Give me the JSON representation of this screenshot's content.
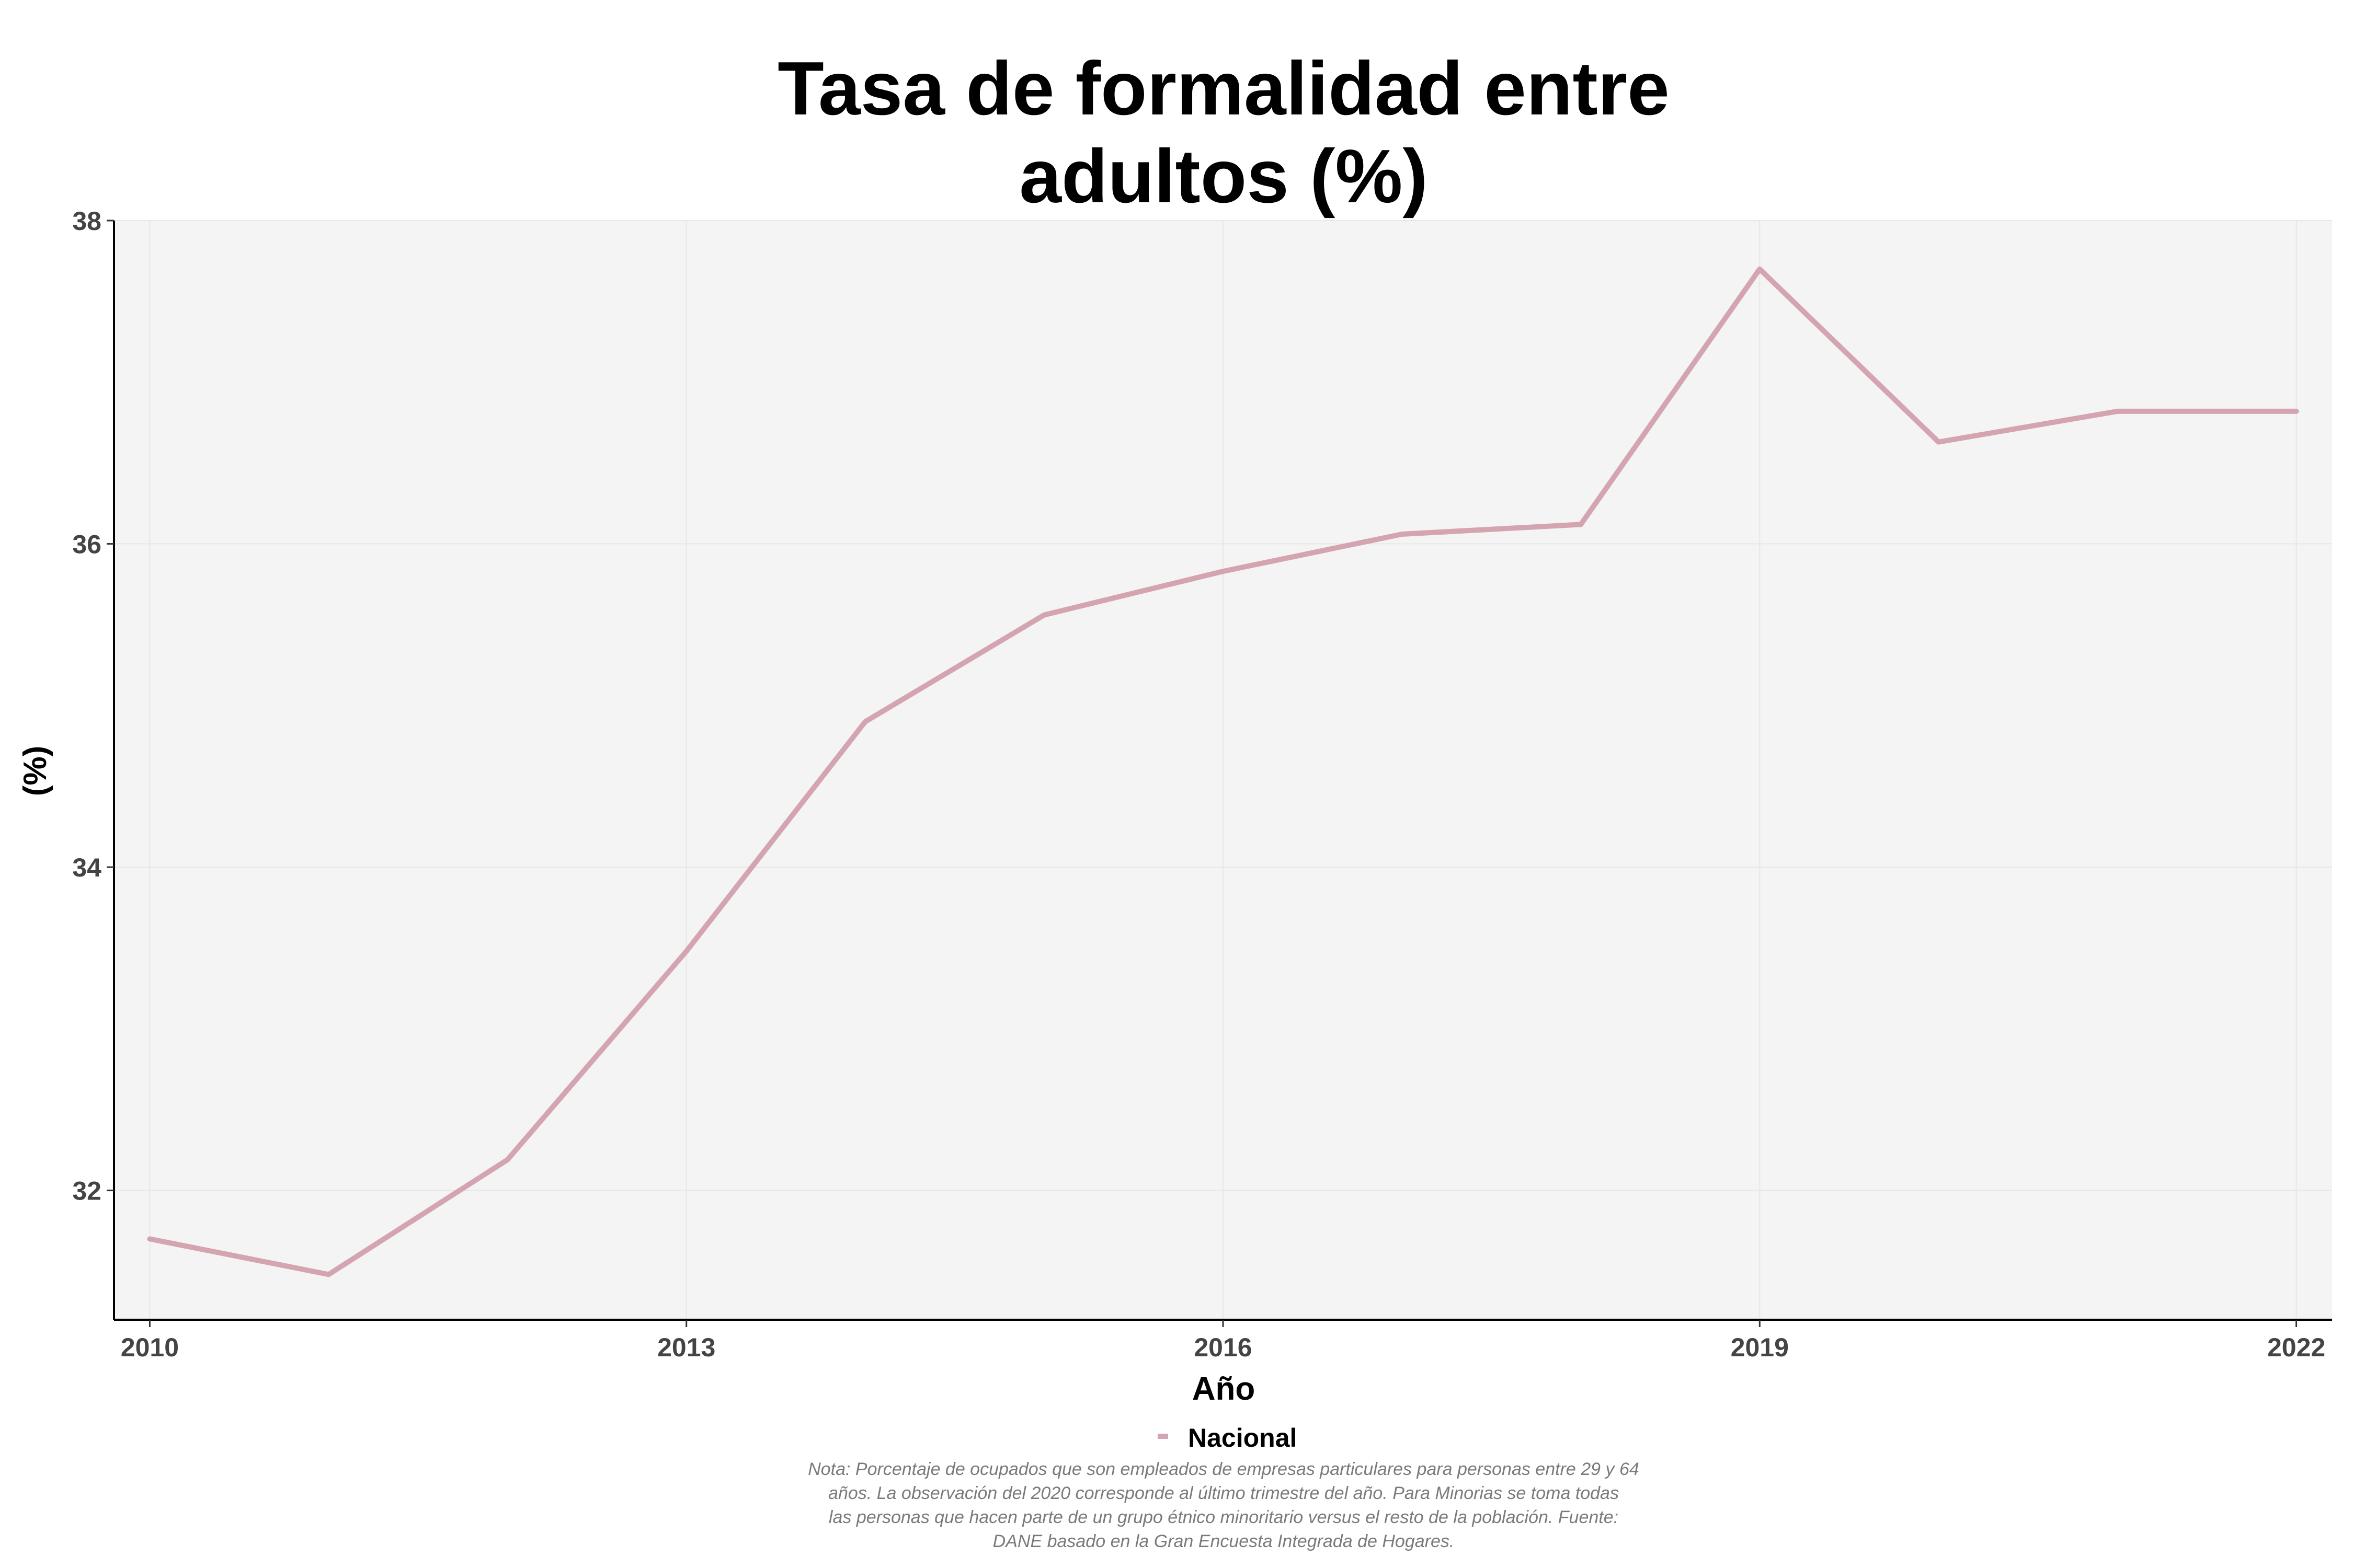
{
  "chart_data": {
    "type": "line",
    "title": [
      "Tasa de formalidad entre",
      "adultos (%)"
    ],
    "xlabel": "Año",
    "ylabel": "(%)",
    "xlim": [
      2009.8,
      2022.2
    ],
    "ylim": [
      31.2,
      38.0
    ],
    "xticks": [
      2010,
      2013,
      2016,
      2019,
      2022
    ],
    "yticks": [
      32,
      34,
      36,
      38
    ],
    "grid": true,
    "legend_position": "bottom",
    "x": [
      2010,
      2011,
      2012,
      2013,
      2014,
      2015,
      2016,
      2017,
      2018,
      2019,
      2020,
      2021,
      2022
    ],
    "series": [
      {
        "name": "Nacional",
        "color": "#d4a5b0",
        "values": [
          31.7,
          31.48,
          32.19,
          33.48,
          34.9,
          35.56,
          35.83,
          36.06,
          36.12,
          37.7,
          36.63,
          36.82,
          36.82
        ]
      }
    ]
  },
  "note": [
    "Nota: Porcentaje de ocupados que son empleados de empresas particulares para personas entre 29 y 64",
    "años. La observación del 2020 corresponde al último trimestre del año. Para Minorias se toma todas",
    "las personas que hacen parte de un grupo étnico minoritario versus el resto de la población. Fuente:",
    "DANE basado en la Gran Encuesta Integrada de Hogares."
  ]
}
